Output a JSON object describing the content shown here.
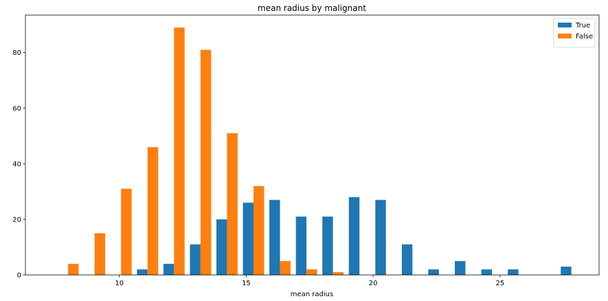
{
  "chart_data": {
    "type": "bar",
    "title": "mean radius by malignant",
    "xlabel": "mean radius",
    "ylabel": "",
    "xlim": [
      6.3,
      28.9
    ],
    "ylim": [
      0,
      93.5
    ],
    "xticks": [
      10,
      15,
      20,
      25
    ],
    "yticks": [
      0,
      20,
      40,
      60,
      80
    ],
    "grid": false,
    "legend_position": "top-right",
    "x": [
      7.981,
      9.024,
      10.068,
      11.111,
      12.155,
      13.199,
      14.242,
      15.286,
      16.329,
      17.373,
      18.416,
      19.46,
      20.503,
      21.547,
      22.59,
      23.634,
      24.678,
      25.721,
      26.765,
      27.808
    ],
    "bin_width": 1.0437,
    "series": [
      {
        "name": "True",
        "color": "#1f77b4",
        "values": [
          0,
          0,
          0,
          2,
          4,
          11,
          20,
          26,
          27,
          21,
          21,
          28,
          27,
          11,
          2,
          5,
          2,
          2,
          0,
          3
        ]
      },
      {
        "name": "False",
        "color": "#ff7f0e",
        "values": [
          4,
          15,
          31,
          46,
          89,
          81,
          51,
          32,
          5,
          2,
          1,
          0,
          0,
          0,
          0,
          0,
          0,
          0,
          0,
          0
        ]
      }
    ]
  }
}
